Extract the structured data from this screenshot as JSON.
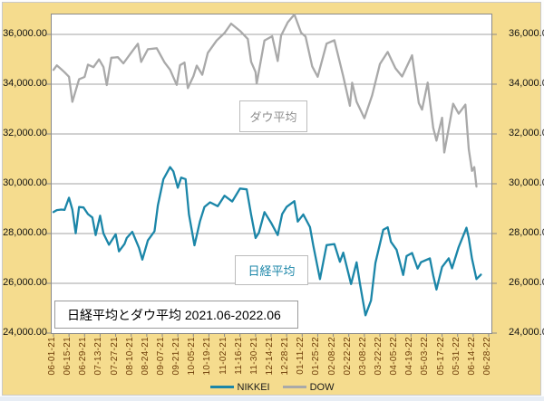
{
  "title_box": {
    "text": "日経平均とダウ平均 2021.06-2022.06"
  },
  "annotations": {
    "dow_label": "ダウ平均",
    "nikkei_label": "日経平均"
  },
  "legend": {
    "items": [
      {
        "label": "NIKKEI",
        "color": "#1b86a8"
      },
      {
        "label": "DOW",
        "color": "#a9a9a9"
      }
    ]
  },
  "colors": {
    "background": "#f5dc8e",
    "plot_background": "#ffffff",
    "plot_border": "#8a8a8a",
    "gridline": "#a3a3a3",
    "x_tick_label": "#6e3d08",
    "y_tick_label": "#111111"
  },
  "chart_data": {
    "type": "line",
    "title": "日経平均とダウ平均 2021.06-2022.06",
    "xlabel": "",
    "ylabel": "",
    "grid": true,
    "legend_position": "bottom",
    "y_axis": {
      "min": 24000,
      "max": 36800,
      "gridline_values": [
        24000,
        26000,
        28000,
        30000,
        32000,
        34000,
        36000
      ],
      "left_labels": [
        "24,000.00",
        "26,000.00",
        "28,000.00",
        "30,000.00",
        "32,000.00",
        "34,000.00",
        "36,000.00"
      ],
      "right_labels": [
        "24,000.00",
        "26,000.00",
        "28,000.00",
        "30,000.00",
        "32,000.00",
        "34,000.00",
        "36,000.00"
      ]
    },
    "x_axis": {
      "first_date": "06-01-21",
      "last_date": "06-28-22",
      "tick_labels": [
        "06-01-21",
        "06-15-21",
        "06-29-21",
        "07-13-21",
        "07-27-21",
        "08-10-21",
        "08-24-21",
        "09-07-21",
        "09-21-21",
        "10-05-21",
        "10-19-21",
        "11-02-21",
        "11-16-21",
        "11-30-21",
        "12-14-21",
        "12-28-21",
        "01-11-22",
        "01-25-22",
        "02-08-22",
        "02-22-22",
        "03-08-22",
        "03-22-22",
        "04-05-22",
        "04-19-22",
        "05-03-22",
        "05-17-22",
        "05-31-22",
        "06-14-22",
        "06-28-22"
      ]
    },
    "series": [
      {
        "name": "NIKKEI",
        "color": "#1b86a8",
        "points": [
          [
            "06-01-21",
            28862
          ],
          [
            "06-04-21",
            28942
          ],
          [
            "06-08-21",
            28964
          ],
          [
            "06-11-21",
            28949
          ],
          [
            "06-15-21",
            29441
          ],
          [
            "06-18-21",
            28964
          ],
          [
            "06-21-21",
            28011
          ],
          [
            "06-24-21",
            29066
          ],
          [
            "06-28-21",
            29048
          ],
          [
            "07-02-21",
            28783
          ],
          [
            "07-06-21",
            28643
          ],
          [
            "07-09-21",
            27940
          ],
          [
            "07-13-21",
            28718
          ],
          [
            "07-16-21",
            28003
          ],
          [
            "07-21-21",
            27548
          ],
          [
            "07-27-21",
            27970
          ],
          [
            "07-30-21",
            27284
          ],
          [
            "08-04-21",
            27585
          ],
          [
            "08-06-21",
            27820
          ],
          [
            "08-11-21",
            28070
          ],
          [
            "08-17-21",
            27424
          ],
          [
            "08-20-21",
            26954
          ],
          [
            "08-25-21",
            27724
          ],
          [
            "08-31-21",
            28090
          ],
          [
            "09-03-21",
            29128
          ],
          [
            "09-08-21",
            30181
          ],
          [
            "09-14-21",
            30670
          ],
          [
            "09-17-21",
            30500
          ],
          [
            "09-21-21",
            29840
          ],
          [
            "09-24-21",
            30249
          ],
          [
            "09-28-21",
            30184
          ],
          [
            "10-01-21",
            28771
          ],
          [
            "10-06-21",
            27528
          ],
          [
            "10-11-21",
            28499
          ],
          [
            "10-15-21",
            29069
          ],
          [
            "10-20-21",
            29255
          ],
          [
            "10-27-21",
            29098
          ],
          [
            "11-02-21",
            29521
          ],
          [
            "11-09-21",
            29286
          ],
          [
            "11-16-21",
            29808
          ],
          [
            "11-22-21",
            29774
          ],
          [
            "11-26-21",
            28752
          ],
          [
            "11-30-21",
            27822
          ],
          [
            "12-03-21",
            28030
          ],
          [
            "12-08-21",
            28861
          ],
          [
            "12-14-21",
            28432
          ],
          [
            "12-20-21",
            27938
          ],
          [
            "12-24-21",
            28782
          ],
          [
            "12-28-21",
            29069
          ],
          [
            "01-04-22",
            29301
          ],
          [
            "01-07-22",
            28479
          ],
          [
            "01-12-22",
            28766
          ],
          [
            "01-18-22",
            28257
          ],
          [
            "01-21-22",
            27522
          ],
          [
            "01-27-22",
            26170
          ],
          [
            "02-02-22",
            27534
          ],
          [
            "02-09-22",
            27580
          ],
          [
            "02-14-22",
            26866
          ],
          [
            "02-17-22",
            27232
          ],
          [
            "02-24-22",
            25971
          ],
          [
            "03-01-22",
            26845
          ],
          [
            "03-04-22",
            25985
          ],
          [
            "03-09-22",
            24718
          ],
          [
            "03-14-22",
            25308
          ],
          [
            "03-18-22",
            26827
          ],
          [
            "03-25-22",
            28150
          ],
          [
            "03-29-22",
            28252
          ],
          [
            "04-01-22",
            27665
          ],
          [
            "04-06-22",
            27350
          ],
          [
            "04-12-22",
            26335
          ],
          [
            "04-15-22",
            27093
          ],
          [
            "04-20-22",
            27217
          ],
          [
            "04-25-22",
            26591
          ],
          [
            "04-28-22",
            26848
          ],
          [
            "05-06-22",
            27004
          ],
          [
            "05-09-22",
            26319
          ],
          [
            "05-12-22",
            25749
          ],
          [
            "05-17-22",
            26660
          ],
          [
            "05-23-22",
            27002
          ],
          [
            "05-26-22",
            26605
          ],
          [
            "06-01-22",
            27458
          ],
          [
            "06-08-22",
            28234
          ],
          [
            "06-10-22",
            27824
          ],
          [
            "06-13-22",
            26987
          ],
          [
            "06-17-22",
            26172
          ],
          [
            "06-21-22",
            26350
          ]
        ]
      },
      {
        "name": "DOW",
        "color": "#a9a9a9",
        "points": [
          [
            "06-01-21",
            34575
          ],
          [
            "06-04-21",
            34756
          ],
          [
            "06-08-21",
            34600
          ],
          [
            "06-11-21",
            34480
          ],
          [
            "06-15-21",
            34299
          ],
          [
            "06-18-21",
            33290
          ],
          [
            "06-24-21",
            34196
          ],
          [
            "06-29-21",
            34292
          ],
          [
            "07-02-21",
            34786
          ],
          [
            "07-07-21",
            34682
          ],
          [
            "07-12-21",
            34996
          ],
          [
            "07-16-21",
            34688
          ],
          [
            "07-19-21",
            33962
          ],
          [
            "07-23-21",
            35062
          ],
          [
            "07-29-21",
            35085
          ],
          [
            "08-03-21",
            34838
          ],
          [
            "08-10-21",
            35265
          ],
          [
            "08-16-21",
            35625
          ],
          [
            "08-19-21",
            34894
          ],
          [
            "08-25-21",
            35405
          ],
          [
            "09-02-21",
            35444
          ],
          [
            "09-09-21",
            34879
          ],
          [
            "09-14-21",
            34577
          ],
          [
            "09-20-21",
            33970
          ],
          [
            "09-23-21",
            34765
          ],
          [
            "09-27-21",
            34869
          ],
          [
            "09-30-21",
            33844
          ],
          [
            "10-05-21",
            34315
          ],
          [
            "10-08-21",
            34746
          ],
          [
            "10-13-21",
            34378
          ],
          [
            "10-18-21",
            35258
          ],
          [
            "10-26-21",
            35757
          ],
          [
            "11-02-21",
            36053
          ],
          [
            "11-08-21",
            36432
          ],
          [
            "11-16-21",
            36142
          ],
          [
            "11-23-21",
            35814
          ],
          [
            "11-26-21",
            34899
          ],
          [
            "11-30-21",
            34484
          ],
          [
            "12-01-21",
            34022
          ],
          [
            "12-08-21",
            35755
          ],
          [
            "12-15-21",
            35927
          ],
          [
            "12-20-21",
            34932
          ],
          [
            "12-23-21",
            35950
          ],
          [
            "12-29-21",
            36489
          ],
          [
            "01-04-22",
            36800
          ],
          [
            "01-10-22",
            36069
          ],
          [
            "01-14-22",
            35912
          ],
          [
            "01-20-22",
            34715
          ],
          [
            "01-25-22",
            34297
          ],
          [
            "02-02-22",
            35629
          ],
          [
            "02-09-22",
            35768
          ],
          [
            "02-17-22",
            34312
          ],
          [
            "02-23-22",
            33132
          ],
          [
            "02-25-22",
            34059
          ],
          [
            "03-01-22",
            33295
          ],
          [
            "03-08-22",
            32632
          ],
          [
            "03-15-22",
            33544
          ],
          [
            "03-22-22",
            34807
          ],
          [
            "03-29-22",
            35294
          ],
          [
            "04-05-22",
            34641
          ],
          [
            "04-11-22",
            34308
          ],
          [
            "04-20-22",
            35160
          ],
          [
            "04-26-22",
            33240
          ],
          [
            "04-29-22",
            32977
          ],
          [
            "05-04-22",
            34061
          ],
          [
            "05-09-22",
            32246
          ],
          [
            "05-12-22",
            31730
          ],
          [
            "05-17-22",
            32654
          ],
          [
            "05-19-22",
            31253
          ],
          [
            "05-27-22",
            33213
          ],
          [
            "06-01-22",
            32813
          ],
          [
            "06-07-22",
            33180
          ],
          [
            "06-10-22",
            31393
          ],
          [
            "06-13-22",
            30517
          ],
          [
            "06-15-22",
            30668
          ],
          [
            "06-17-22",
            29889
          ]
        ]
      }
    ]
  }
}
